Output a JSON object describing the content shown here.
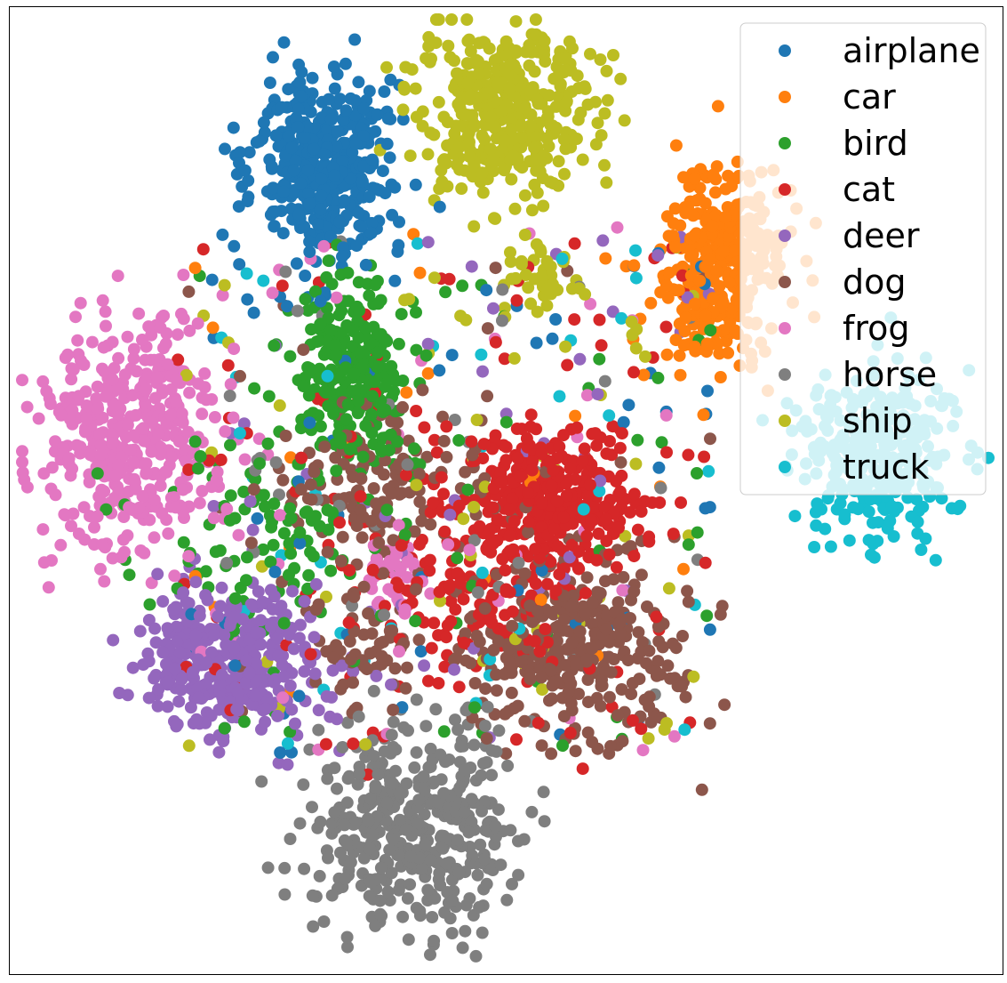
{
  "chart_data": {
    "type": "scatter",
    "title": "",
    "xlabel": "",
    "ylabel": "",
    "axes_ticks_visible": false,
    "grid": false,
    "legend_location": "upper right",
    "series": [
      {
        "name": "airplane",
        "color": "#1f77b4",
        "clusters": [
          {
            "cx": 366,
            "cy": 190,
            "sx": 40,
            "sy": 55,
            "n": 420
          }
        ],
        "scatter_n": 60
      },
      {
        "name": "car",
        "color": "#ff7f0e",
        "clusters": [
          {
            "cx": 815,
            "cy": 300,
            "sx": 35,
            "sy": 55,
            "n": 330
          }
        ],
        "scatter_n": 25
      },
      {
        "name": "bird",
        "color": "#2ca02c",
        "clusters": [
          {
            "cx": 395,
            "cy": 420,
            "sx": 30,
            "sy": 55,
            "n": 260
          },
          {
            "cx": 300,
            "cy": 610,
            "sx": 70,
            "sy": 50,
            "n": 90
          }
        ],
        "scatter_n": 70
      },
      {
        "name": "cat",
        "color": "#d62728",
        "clusters": [
          {
            "cx": 625,
            "cy": 560,
            "sx": 45,
            "sy": 40,
            "n": 300
          },
          {
            "cx": 520,
            "cy": 650,
            "sx": 70,
            "sy": 70,
            "n": 180
          }
        ],
        "scatter_n": 80
      },
      {
        "name": "deer",
        "color": "#9467bd",
        "clusters": [
          {
            "cx": 255,
            "cy": 740,
            "sx": 55,
            "sy": 45,
            "n": 360
          }
        ],
        "scatter_n": 50
      },
      {
        "name": "dog",
        "color": "#8c564b",
        "clusters": [
          {
            "cx": 645,
            "cy": 730,
            "sx": 60,
            "sy": 50,
            "n": 320
          },
          {
            "cx": 430,
            "cy": 550,
            "sx": 60,
            "sy": 40,
            "n": 120
          },
          {
            "cx": 410,
            "cy": 730,
            "sx": 30,
            "sy": 30,
            "n": 60
          }
        ],
        "scatter_n": 40
      },
      {
        "name": "frog",
        "color": "#e377c2",
        "clusters": [
          {
            "cx": 150,
            "cy": 490,
            "sx": 55,
            "sy": 65,
            "n": 420
          },
          {
            "cx": 445,
            "cy": 640,
            "sx": 18,
            "sy": 20,
            "n": 40
          }
        ],
        "scatter_n": 35
      },
      {
        "name": "horse",
        "color": "#7f7f7f",
        "clusters": [
          {
            "cx": 470,
            "cy": 930,
            "sx": 60,
            "sy": 55,
            "n": 430
          }
        ],
        "scatter_n": 40
      },
      {
        "name": "ship",
        "color": "#bcbd22",
        "clusters": [
          {
            "cx": 570,
            "cy": 130,
            "sx": 50,
            "sy": 45,
            "n": 400
          },
          {
            "cx": 600,
            "cy": 315,
            "sx": 25,
            "sy": 15,
            "n": 40
          }
        ],
        "scatter_n": 60
      },
      {
        "name": "truck",
        "color": "#17becf",
        "clusters": [
          {
            "cx": 985,
            "cy": 510,
            "sx": 45,
            "sy": 45,
            "n": 330
          }
        ],
        "scatter_n": 40
      }
    ],
    "overlay_cluster": {
      "color": "#ffffff",
      "opacity": 0.8,
      "cx": 950,
      "cy": 400,
      "sx": 75,
      "sy": 110,
      "n": 260
    }
  }
}
